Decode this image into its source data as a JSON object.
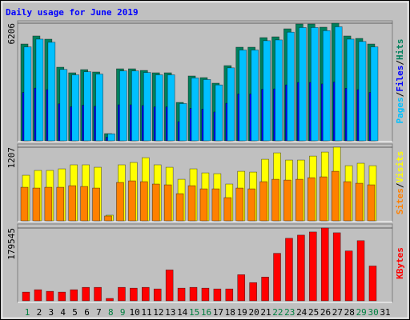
{
  "title": "Daily usage for June 2019",
  "title_color": "#0000ff",
  "legend_separator": "/",
  "chart_data": [
    {
      "type": "bar",
      "ylim": [
        0,
        6206
      ],
      "yticks": [
        6206
      ],
      "series": [
        {
          "name": "Hits",
          "color": "#00805c",
          "values": [
            5108,
            5531,
            5362,
            3884,
            3589,
            3757,
            3631,
            380,
            3800,
            3800,
            3715,
            3589,
            3589,
            2026,
            3420,
            3335,
            3040,
            3968,
            4939,
            4939,
            5446,
            5488,
            5910,
            6164,
            6164,
            5995,
            6206,
            5531,
            5404,
            5108,
            null
          ]
        },
        {
          "name": "Files",
          "color": "#0000ff",
          "values": [
            2550,
            2780,
            2700,
            1950,
            1800,
            1880,
            1820,
            190,
            1900,
            1900,
            1860,
            1790,
            1790,
            1010,
            1710,
            1670,
            1520,
            1980,
            2470,
            2470,
            2720,
            2740,
            2950,
            3080,
            3080,
            3000,
            3100,
            2770,
            2700,
            2550,
            null
          ]
        },
        {
          "name": "Pages",
          "color": "#00c0ff",
          "values": [
            4955,
            5365,
            5201,
            3767,
            3481,
            3644,
            3522,
            369,
            3686,
            3686,
            3604,
            3481,
            3481,
            1965,
            3317,
            3235,
            2949,
            3849,
            4791,
            4791,
            5283,
            5323,
            5733,
            5979,
            5979,
            5815,
            6020,
            5365,
            5242,
            4955,
            null
          ]
        }
      ]
    },
    {
      "type": "bar",
      "ylim": [
        0,
        1207
      ],
      "yticks": [
        1207
      ],
      "series": [
        {
          "name": "Visits",
          "color": "#ffff00",
          "values": [
            747,
            826,
            826,
            852,
            918,
            918,
            878,
            92,
            918,
            957,
            1035,
            918,
            878,
            681,
            852,
            786,
            773,
            603,
            812,
            799,
            1009,
            1114,
            996,
            996,
            1061,
            1127,
            1207,
            904,
            944,
            904,
            null
          ]
        },
        {
          "name": "Sites",
          "color": "#ff8000",
          "values": [
            550,
            537,
            550,
            550,
            576,
            563,
            537,
            79,
            629,
            655,
            642,
            603,
            590,
            445,
            576,
            524,
            524,
            380,
            537,
            524,
            642,
            681,
            668,
            681,
            707,
            721,
            812,
            642,
            616,
            590,
            null
          ]
        }
      ]
    },
    {
      "type": "bar",
      "ylim": [
        0,
        179545
      ],
      "yticks": [
        179545
      ],
      "categories": [
        "1",
        "2",
        "3",
        "4",
        "5",
        "6",
        "7",
        "8",
        "9",
        "10",
        "11",
        "12",
        "13",
        "14",
        "15",
        "16",
        "17",
        "18",
        "19",
        "20",
        "21",
        "22",
        "23",
        "24",
        "25",
        "26",
        "27",
        "28",
        "29",
        "30",
        "31"
      ],
      "category_colors": [
        "#008040",
        "#000000",
        "#000000",
        "#000000",
        "#000000",
        "#000000",
        "#000000",
        "#008040",
        "#008040",
        "#000000",
        "#000000",
        "#000000",
        "#000000",
        "#000000",
        "#008040",
        "#008040",
        "#000000",
        "#000000",
        "#000000",
        "#000000",
        "#000000",
        "#008040",
        "#008040",
        "#000000",
        "#000000",
        "#000000",
        "#000000",
        "#000000",
        "#008040",
        "#008040",
        "#000000"
      ],
      "series": [
        {
          "name": "KBytes",
          "color": "#ff0000",
          "values": [
            21470,
            27330,
            23420,
            21470,
            27330,
            33180,
            33180,
            5860,
            33180,
            31230,
            33180,
            29280,
            76130,
            31230,
            33180,
            31230,
            29280,
            29280,
            64420,
            44900,
            58560,
            117120,
            154210,
            162020,
            169830,
            179545,
            167870,
            122980,
            148350,
            85890,
            null
          ]
        }
      ]
    }
  ]
}
